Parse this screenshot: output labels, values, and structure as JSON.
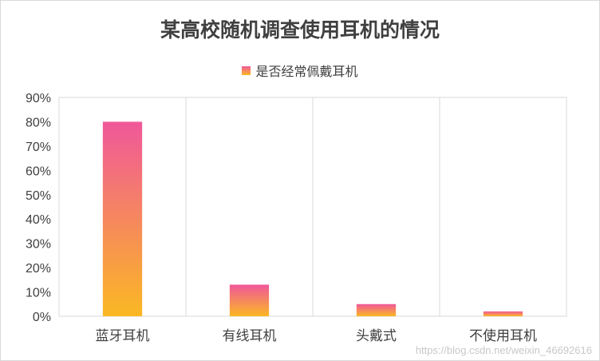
{
  "chart_data": {
    "type": "bar",
    "title": "某高校随机调查使用耳机的情况",
    "categories": [
      "蓝牙耳机",
      "有线耳机",
      "头戴式",
      "不使用耳机"
    ],
    "series": [
      {
        "name": "是否经常佩戴耳机",
        "values": [
          0.8,
          0.13,
          0.05,
          0.02
        ]
      }
    ],
    "y_ticks": [
      "0%",
      "10%",
      "20%",
      "30%",
      "40%",
      "50%",
      "60%",
      "70%",
      "80%",
      "90%"
    ],
    "ylim": [
      0,
      0.9
    ],
    "grid": "vertical category separators",
    "legend": "top-center",
    "colors": {
      "bar_top": "#f0579a",
      "bar_bottom": "#fbb823"
    }
  },
  "watermark": "https://blog.csdn.net/weixin_46692616"
}
